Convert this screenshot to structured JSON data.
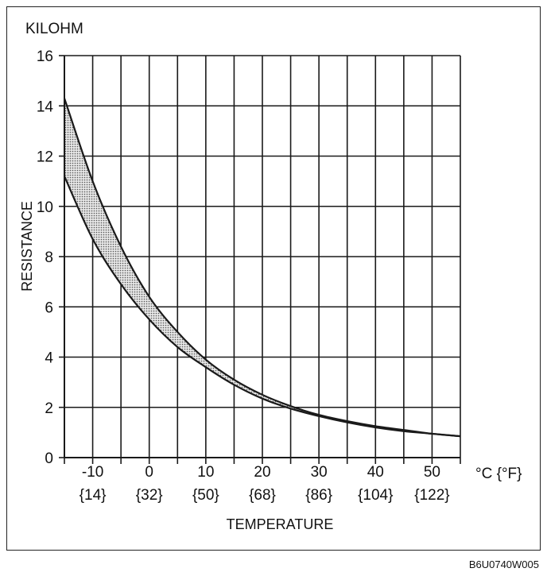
{
  "chart_data": {
    "type": "area",
    "unit_label": "KILOHM",
    "ylabel": "RESISTANCE",
    "xlabel": "TEMPERATURE",
    "x_unit_label": "°C {°F}",
    "xlim": [
      -15,
      55
    ],
    "ylim": [
      0,
      16
    ],
    "y_ticks": [
      0,
      2,
      4,
      6,
      8,
      10,
      12,
      14,
      16
    ],
    "x_ticks": [
      {
        "value": -10,
        "label": "-10",
        "alt_label": "{14}"
      },
      {
        "value": 0,
        "label": "0",
        "alt_label": "{32}"
      },
      {
        "value": 10,
        "label": "10",
        "alt_label": "{50}"
      },
      {
        "value": 20,
        "label": "20",
        "alt_label": "{68}"
      },
      {
        "value": 30,
        "label": "30",
        "alt_label": "{86}"
      },
      {
        "value": 40,
        "label": "40",
        "alt_label": "{104}"
      },
      {
        "value": 50,
        "label": "50",
        "alt_label": "{122}"
      }
    ],
    "grid": true,
    "band": {
      "upper": {
        "x": [
          -15,
          -10,
          -5,
          0,
          5,
          10,
          15,
          20,
          25,
          30,
          35,
          40,
          45,
          50,
          55
        ],
        "y": [
          14.3,
          11.0,
          8.4,
          6.4,
          5.0,
          3.9,
          3.1,
          2.5,
          2.05,
          1.7,
          1.45,
          1.25,
          1.1,
          0.95,
          0.85
        ]
      },
      "lower": {
        "x": [
          -15,
          -10,
          -5,
          0,
          5,
          10,
          15,
          20,
          25,
          30,
          35,
          40,
          45,
          50,
          55
        ],
        "y": [
          11.2,
          8.7,
          6.9,
          5.5,
          4.4,
          3.6,
          2.9,
          2.35,
          1.95,
          1.65,
          1.4,
          1.2,
          1.05,
          0.95,
          0.85
        ]
      }
    }
  },
  "figure_code": "B6U0740W005",
  "colors": {
    "line": "#1a1a1a",
    "band_fill": "#bdbdbd",
    "grid": "#1a1a1a"
  }
}
